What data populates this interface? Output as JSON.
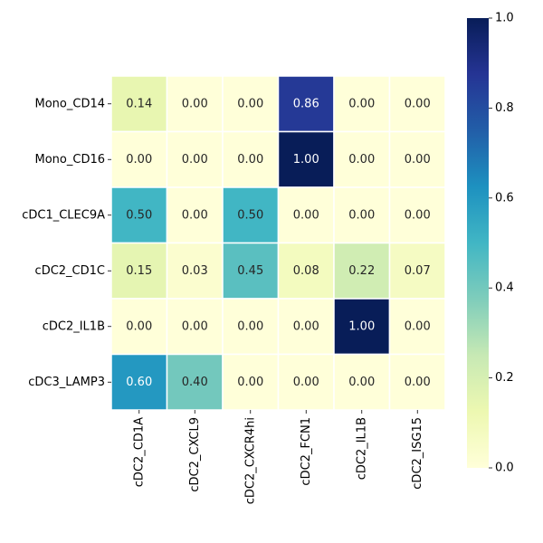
{
  "chart_data": {
    "type": "heatmap",
    "title": "",
    "xlabel": "",
    "ylabel": "",
    "rows": [
      "Mono_CD14",
      "Mono_CD16",
      "cDC1_CLEC9A",
      "cDC2_CD1C",
      "cDC2_IL1B",
      "cDC3_LAMP3"
    ],
    "columns": [
      "cDC2_CD1A",
      "cDC2_CXCL9",
      "cDC2_CXCR4hi",
      "cDC2_FCN1",
      "cDC2_IL1B",
      "cDC2_ISG15"
    ],
    "values": [
      [
        0.14,
        0.0,
        0.0,
        0.86,
        0.0,
        0.0
      ],
      [
        0.0,
        0.0,
        0.0,
        1.0,
        0.0,
        0.0
      ],
      [
        0.5,
        0.0,
        0.5,
        0.0,
        0.0,
        0.0
      ],
      [
        0.15,
        0.03,
        0.45,
        0.08,
        0.22,
        0.07
      ],
      [
        0.0,
        0.0,
        0.0,
        0.0,
        1.0,
        0.0
      ],
      [
        0.6,
        0.4,
        0.0,
        0.0,
        0.0,
        0.0
      ]
    ],
    "value_format": "0.00",
    "annotated": true,
    "colormap": "YlGnBu",
    "colorbar": {
      "range": [
        0.0,
        1.0
      ],
      "ticks": [
        "0.0",
        "0.2",
        "0.4",
        "0.6",
        "0.8",
        "1.0"
      ]
    },
    "grid": false
  }
}
